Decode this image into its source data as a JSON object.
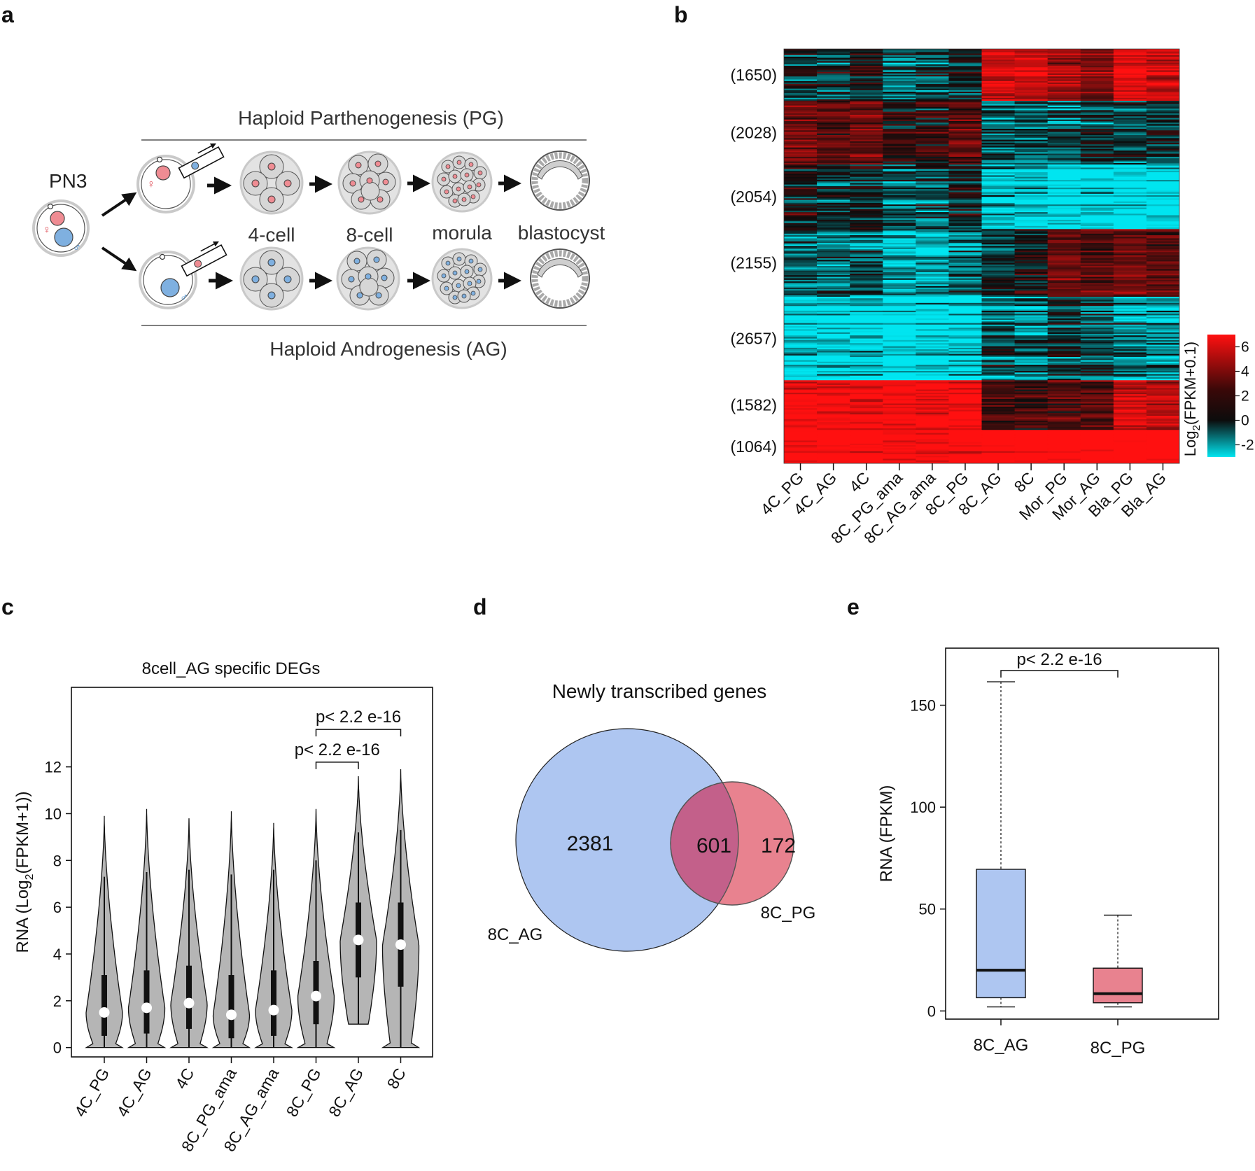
{
  "panels": {
    "a": "a",
    "b": "b",
    "c": "c",
    "d": "d",
    "e": "e"
  },
  "colors": {
    "ag_blue": "#aec6f1",
    "pg_pink": "#e8828f",
    "overlap": "#c3608a",
    "violin_gray": "#b5b5b5",
    "heat_low": "#00e5f0",
    "heat_mid": "#0c0c0c",
    "heat_high": "#ff1010"
  },
  "panel_a": {
    "pn3_label": "PN3",
    "pg_title": "Haploid  Parthenogenesis (PG)",
    "ag_title": "Haploid  Androgenesis (AG)",
    "stages": [
      "4-cell",
      "8-cell",
      "morula",
      "blastocyst"
    ],
    "female_symbol": "♀",
    "male_symbol": "♂",
    "icons": [
      "zygote-icon",
      "micropipette-icon",
      "embryo-4cell-icon",
      "embryo-8cell-icon",
      "morula-icon",
      "blastocyst-icon",
      "arrow-icon"
    ]
  },
  "chart_data": [
    {
      "panel": "b",
      "type": "heatmap",
      "title": "",
      "columns": [
        "4C_PG",
        "4C_AG",
        "4C",
        "8C_PG_ama",
        "8C_AG_ama",
        "8C_PG",
        "8C_AG",
        "8C",
        "Mor_PG",
        "Mor_AG",
        "Bla_PG",
        "Bla_AG"
      ],
      "cluster_labels": [
        "(1650)",
        "(2028)",
        "(2054)",
        "(2155)",
        "(2657)",
        "(1582)",
        "(1064)"
      ],
      "cluster_sizes": [
        1650,
        2028,
        2054,
        2155,
        2657,
        1582,
        1064
      ],
      "cluster_means": [
        [
          -0.3,
          -0.5,
          -0.2,
          -1.0,
          -0.7,
          -0.2,
          4.0,
          4.0,
          3.0,
          2.0,
          4.5,
          4.0
        ],
        [
          2.0,
          1.5,
          2.0,
          0.5,
          0.8,
          1.8,
          -1.0,
          -1.0,
          -1.0,
          -0.5,
          -0.5,
          -0.5
        ],
        [
          0.2,
          -0.2,
          0.0,
          -1.0,
          -0.8,
          0.0,
          -2.3,
          -2.2,
          -2.8,
          -2.6,
          -2.8,
          -2.8
        ],
        [
          -1.0,
          -1.2,
          -1.0,
          -2.0,
          -1.8,
          -1.2,
          -0.2,
          0.2,
          2.0,
          1.5,
          2.2,
          1.5
        ],
        [
          -2.5,
          -2.5,
          -2.5,
          -3.0,
          -3.0,
          -2.6,
          -1.0,
          -1.2,
          -0.5,
          -1.0,
          -1.5,
          -1.5
        ],
        [
          5.0,
          5.0,
          5.0,
          5.0,
          5.0,
          5.0,
          1.0,
          1.0,
          1.5,
          1.5,
          4.0,
          3.5
        ],
        [
          5.5,
          5.5,
          5.5,
          5.0,
          5.0,
          5.5,
          6.0,
          6.0,
          6.0,
          6.0,
          6.0,
          6.0
        ]
      ],
      "colorbar": {
        "label_main": "Log",
        "label_sub": "2",
        "label_rest": "(FPKM+0.1)",
        "ticks": [
          "6",
          "4",
          "2",
          "0",
          "-2"
        ],
        "tick_values": [
          6,
          4,
          2,
          0,
          -2
        ],
        "range": [
          -3,
          7
        ]
      }
    },
    {
      "panel": "c",
      "type": "violin",
      "title": "8cell_AG specific DEGs",
      "ylabel_main": "RNA (Log",
      "ylabel_sub": "2",
      "ylabel_rest": "(FPKM+1))",
      "ylim": [
        -0.4,
        15.4
      ],
      "yticks": [
        "0",
        "2",
        "4",
        "6",
        "8",
        "10",
        "12"
      ],
      "ytick_values": [
        0,
        2,
        4,
        6,
        8,
        10,
        12
      ],
      "categories": [
        "4C_PG",
        "4C_AG",
        "4C",
        "8C_PG_ama",
        "8C_AG_ama",
        "8C_PG",
        "8C_AG",
        "8C"
      ],
      "medians": [
        1.5,
        1.7,
        1.9,
        1.4,
        1.6,
        2.2,
        4.6,
        4.4
      ],
      "q1": [
        0.5,
        0.6,
        0.8,
        0.4,
        0.5,
        1.0,
        3.0,
        2.6
      ],
      "q3": [
        3.1,
        3.3,
        3.5,
        3.1,
        3.3,
        3.7,
        6.2,
        6.2
      ],
      "whisker_hi": [
        7.3,
        7.5,
        7.6,
        7.4,
        7.6,
        8.0,
        9.2,
        9.3
      ],
      "max": [
        9.9,
        10.2,
        9.8,
        10.1,
        9.6,
        10.2,
        11.6,
        11.9
      ],
      "min": [
        0,
        0,
        0,
        0,
        0,
        0,
        1.0,
        0
      ],
      "annotations": [
        {
          "text": "p< 2.2 e-16",
          "from": 5,
          "to": 6,
          "y": 12.2
        },
        {
          "text": "p< 2.2 e-16",
          "from": 5,
          "to": 7,
          "y": 13.6
        }
      ]
    },
    {
      "panel": "d",
      "type": "venn",
      "title": "Newly transcribed genes",
      "sets": [
        {
          "name": "8C_AG",
          "only": "2381",
          "only_value": 2381
        },
        {
          "name": "8C_PG",
          "only": "172",
          "only_value": 172
        }
      ],
      "overlap": "601",
      "overlap_value": 601
    },
    {
      "panel": "e",
      "type": "box",
      "title": "",
      "ylabel": "RNA (FPKM)",
      "ylim": [
        -4,
        178
      ],
      "yticks": [
        "0",
        "50",
        "100",
        "150"
      ],
      "ytick_values": [
        0,
        50,
        100,
        150
      ],
      "categories": [
        "8C_AG",
        "8C_PG"
      ],
      "whisker_low": [
        2,
        2
      ],
      "q1": [
        6.5,
        4
      ],
      "median": [
        20,
        8.5
      ],
      "q3": [
        69.5,
        21
      ],
      "whisker_high": [
        161.5,
        47
      ],
      "annotation": "p< 2.2 e-16"
    }
  ]
}
